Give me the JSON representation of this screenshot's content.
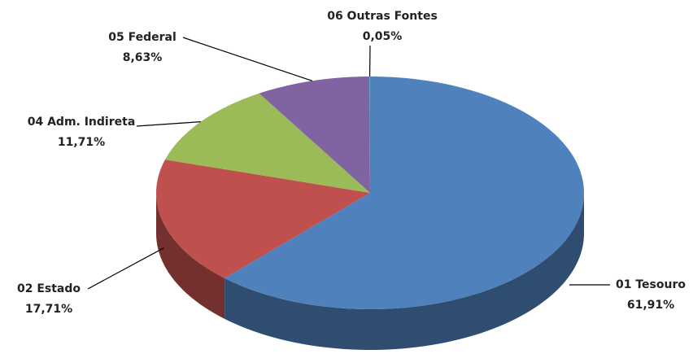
{
  "chart_data": {
    "type": "pie3d",
    "categories": [
      "01 Tesouro",
      "02 Estado",
      "04 Adm. Indireta",
      "05 Federal",
      "06 Outras Fontes"
    ],
    "values": [
      61.91,
      17.71,
      11.71,
      8.63,
      0.05
    ],
    "value_labels": [
      "61,91%",
      "17,71%",
      "11,71%",
      "8,63%",
      "0,05%"
    ],
    "colors": [
      "#4f81bd",
      "#c0504d",
      "#9bbb59",
      "#8064a2",
      "#4bacc6"
    ]
  }
}
